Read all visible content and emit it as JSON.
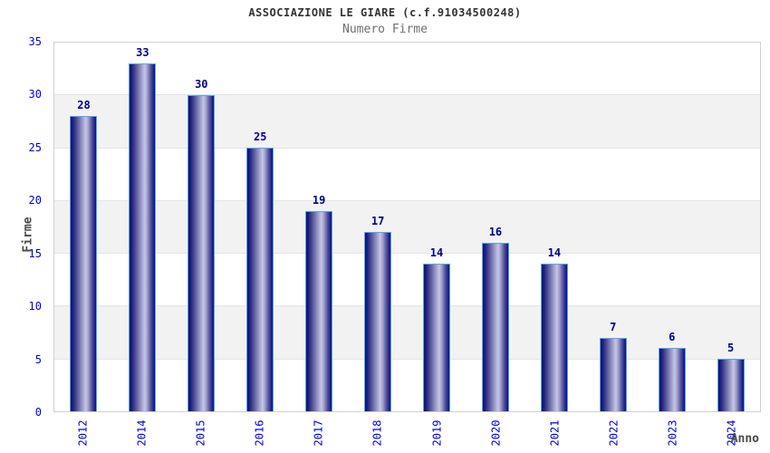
{
  "header": {
    "title": "ASSOCIAZIONE LE GIARE (c.f.91034500248)",
    "subtitle": "Numero Firme"
  },
  "chart_data": {
    "type": "bar",
    "title": "ASSOCIAZIONE LE GIARE (c.f.91034500248)",
    "subtitle": "Numero Firme",
    "categories": [
      "2012",
      "2014",
      "2015",
      "2016",
      "2017",
      "2018",
      "2019",
      "2020",
      "2021",
      "2022",
      "2023",
      "2024"
    ],
    "values": [
      28,
      33,
      30,
      25,
      19,
      17,
      14,
      16,
      14,
      7,
      6,
      5
    ],
    "xlabel": "Anno",
    "ylabel": "Firme",
    "ylim": [
      0,
      35
    ],
    "ytick_step": 5,
    "yticks": [
      0,
      5,
      10,
      15,
      20,
      25,
      30,
      35
    ],
    "grid": "horizontal-bands-alternating",
    "legend": "none",
    "colors": {
      "bar_dark": "#131370",
      "bar_highlight": "#c6c6e6",
      "bar_border": "#55a4f3",
      "tick_text": "#0000dd",
      "value_label_text": "#000090",
      "axis_title_text": "#4a4a4a",
      "band_gray": "#f2f2f2",
      "plot_border": "#d0d0d0",
      "title_text": "#333333",
      "subtitle_text": "#6e6e6e"
    }
  }
}
